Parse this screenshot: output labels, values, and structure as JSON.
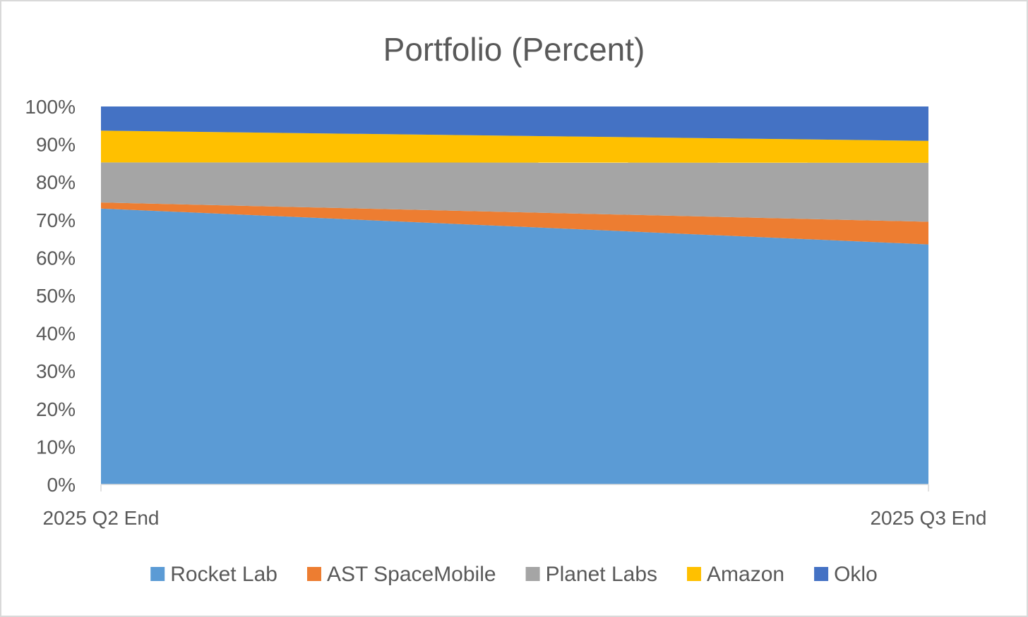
{
  "chart_data": {
    "type": "area",
    "stacked": true,
    "normalized": true,
    "title": "Portfolio (Percent)",
    "categories": [
      "2025 Q2 End",
      "2025 Q3 End"
    ],
    "ylim": [
      0,
      100
    ],
    "yticks": [
      "0%",
      "10%",
      "20%",
      "30%",
      "40%",
      "50%",
      "60%",
      "70%",
      "80%",
      "90%",
      "100%"
    ],
    "grid": false,
    "legend_position": "bottom",
    "series": [
      {
        "name": "Rocket Lab",
        "values": [
          73.0,
          63.5
        ],
        "color": "#5B9BD5"
      },
      {
        "name": "AST SpaceMobile",
        "values": [
          1.6,
          6.0
        ],
        "color": "#ED7D31"
      },
      {
        "name": "Planet Labs",
        "values": [
          10.6,
          15.6
        ],
        "color": "#A5A5A5"
      },
      {
        "name": "Amazon",
        "values": [
          8.4,
          5.8
        ],
        "color": "#FFC000"
      },
      {
        "name": "Oklo",
        "values": [
          6.4,
          9.1
        ],
        "color": "#4472C4"
      }
    ]
  }
}
